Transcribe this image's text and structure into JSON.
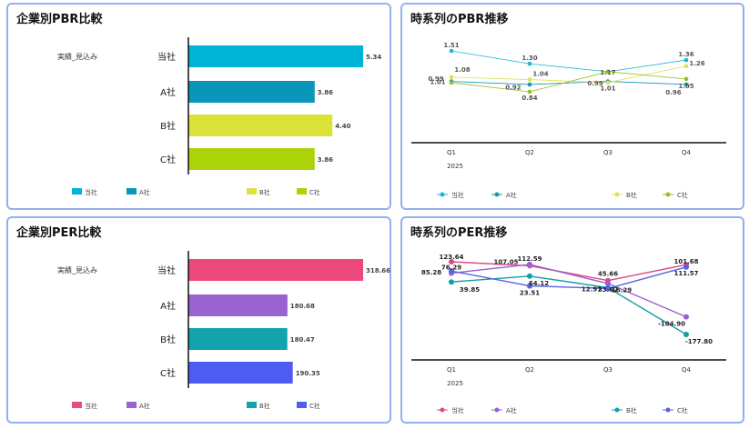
{
  "panels": {
    "pbr_bar": {
      "title": "企業別PBR比較",
      "chart_data": {
        "type": "bar",
        "orientation": "horizontal",
        "row_label": "実績_見込み",
        "categories": [
          "当社",
          "A社",
          "B社",
          "C社"
        ],
        "values": [
          5.34,
          3.86,
          4.4,
          3.86
        ],
        "value_labels": [
          "5.34",
          "3.86",
          "4.40",
          "3.86"
        ],
        "xlim": [
          0,
          5.34
        ],
        "colors": [
          "#00b4d8",
          "#0996b8",
          "#dce23a",
          "#acd20a"
        ],
        "legend": [
          "当社",
          "A社",
          "B社",
          "C社"
        ],
        "legend_position": "bottom"
      }
    },
    "pbr_line": {
      "title": "時系列のPBR推移",
      "chart_data": {
        "type": "line",
        "x": [
          "Q1",
          "Q2",
          "Q3",
          "Q4"
        ],
        "x_sublabel": "2025",
        "series": [
          {
            "name": "当社",
            "values": [
              1.51,
              1.3,
              1.17,
              1.36
            ],
            "labels": [
              "1.51",
              "1.30",
              "",
              "1.36"
            ],
            "color": "#17b7d3"
          },
          {
            "name": "A社",
            "values": [
              1.01,
              0.96,
              1.01,
              0.96
            ],
            "labels": [
              "1.01",
              "",
              "1.01",
              "0.96"
            ],
            "color": "#1597b6"
          },
          {
            "name": "B社",
            "values": [
              1.08,
              1.04,
              0.99,
              1.26
            ],
            "labels": [
              "1.08",
              "1.04",
              "0.99",
              "1.26"
            ],
            "color": "#e0e05a"
          },
          {
            "name": "C社",
            "values": [
              0.99,
              0.84,
              1.17,
              1.05
            ],
            "labels": [
              "0.99",
              "0.84",
              "1.17",
              "1.05"
            ],
            "color": "#9bbd1e"
          }
        ],
        "extra_labels": [
          "0.92"
        ],
        "ylim": [
          0.84,
          1.51
        ],
        "legend_position": "bottom"
      }
    },
    "per_bar": {
      "title": "企業別PER比較",
      "chart_data": {
        "type": "bar",
        "orientation": "horizontal",
        "row_label": "実績_見込み",
        "categories": [
          "当社",
          "A社",
          "B社",
          "C社"
        ],
        "values": [
          318.66,
          180.68,
          180.47,
          190.35
        ],
        "value_labels": [
          "318.66",
          "180.68",
          "180.47",
          "190.35"
        ],
        "xlim": [
          0,
          318.66
        ],
        "colors": [
          "#ec4a7c",
          "#9b62d2",
          "#13a3ae",
          "#4f5cf3"
        ],
        "legend": [
          "当社",
          "A社",
          "B社",
          "C社"
        ],
        "legend_position": "bottom"
      }
    },
    "per_line": {
      "title": "時系列のPER推移",
      "chart_data": {
        "type": "line",
        "x": [
          "Q1",
          "Q2",
          "Q3",
          "Q4"
        ],
        "x_sublabel": "2025",
        "series": [
          {
            "name": "当社",
            "values": [
              123.64,
              107.05,
              45.66,
              111.57
            ],
            "labels": [
              "123.64",
              "107.05",
              "45.66",
              "111.57"
            ],
            "color": "#d94886"
          },
          {
            "name": "A社",
            "values": [
              76.29,
              112.59,
              33.62,
              -104.9
            ],
            "labels": [
              "76.29",
              "112.59",
              "33.62",
              "-104.90"
            ],
            "color": "#9b5fd1"
          },
          {
            "name": "B社",
            "values": [
              39.85,
              64.12,
              16.29,
              -177.8
            ],
            "labels": [
              "39.85",
              "64.12",
              "16.29",
              "-177.80"
            ],
            "color": "#149ea6"
          },
          {
            "name": "C社",
            "values": [
              85.28,
              23.51,
              12.97,
              101.68
            ],
            "labels": [
              "85.28",
              "23.51",
              "12.97",
              "101.68"
            ],
            "color": "#5961e0"
          }
        ],
        "ylim": [
          -177.8,
          123.64
        ],
        "legend_position": "bottom"
      }
    }
  }
}
